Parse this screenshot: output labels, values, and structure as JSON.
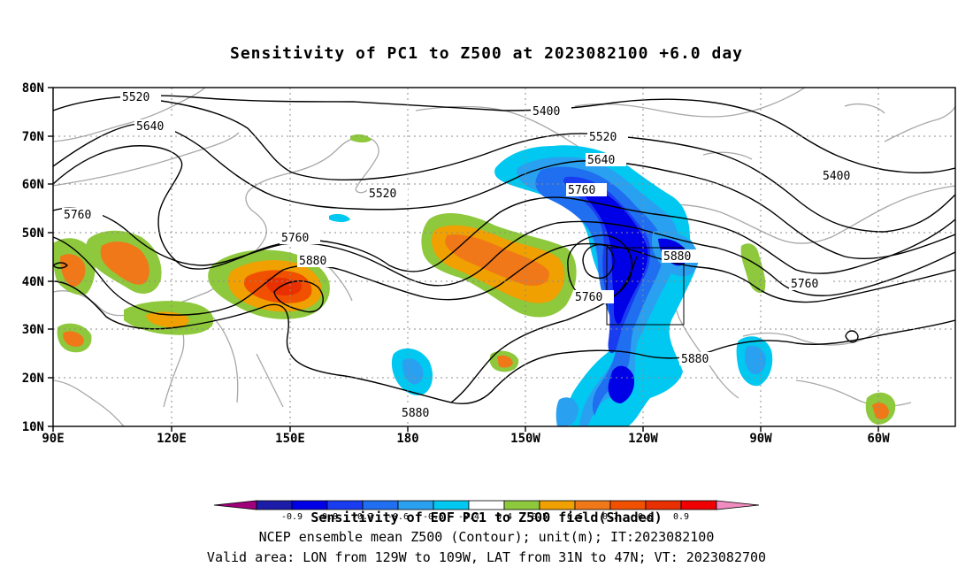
{
  "title": "Sensitivity of PC1 to Z500 at 2023082100 +6.0 day",
  "lat_labels": [
    "80N",
    "70N",
    "60N",
    "50N",
    "40N",
    "30N",
    "20N",
    "10N"
  ],
  "lon_labels": [
    "90E",
    "120E",
    "150E",
    "180",
    "150W",
    "120W",
    "90W",
    "60W"
  ],
  "contour_labels": [
    "5400",
    "5400",
    "5520",
    "5520",
    "5520",
    "5640",
    "5640",
    "5760",
    "5760",
    "5760",
    "5760",
    "5760",
    "5880",
    "5880",
    "5880",
    "5880"
  ],
  "colorbar": {
    "colors": [
      "#a0007a",
      "#1c1ca8",
      "#0000e6",
      "#1a3cf0",
      "#1f6ff0",
      "#2aa0f0",
      "#00c8f0",
      "#ffffff",
      "#8ec83c",
      "#f0a000",
      "#f07818",
      "#f05000",
      "#e83000",
      "#f00000",
      "#f08cc0"
    ],
    "labels": [
      "-0.9",
      "-0.8",
      "-0.7",
      "-0.6",
      "-0.5",
      "-0.4",
      "0.4",
      "0.5",
      "0.6",
      "0.7",
      "0.8",
      "0.9"
    ]
  },
  "captions": [
    "Sensitivity of EOF PC1 to Z500 field(Shaded)",
    "NCEP ensemble mean Z500 (Contour); unit(m); IT:2023082100",
    "Valid area: LON from 129W to 109W, LAT from 31N to 47N; VT: 2023082700"
  ]
}
